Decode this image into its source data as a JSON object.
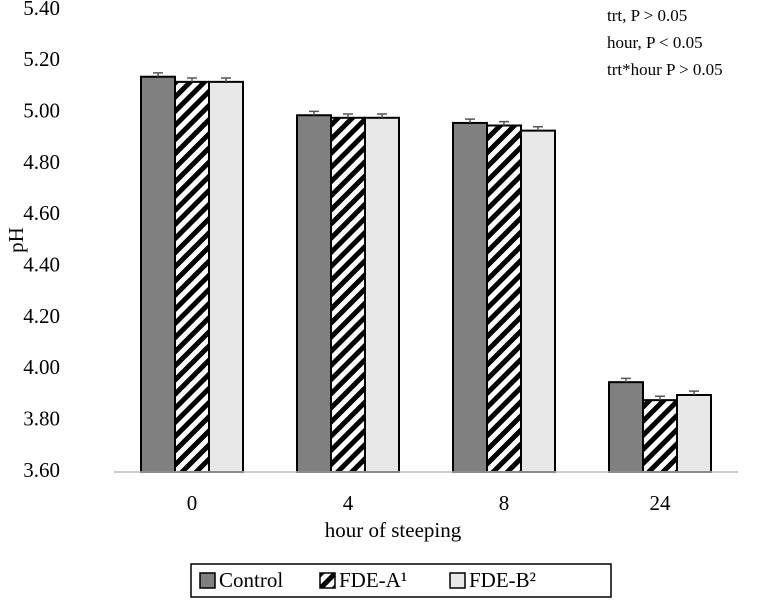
{
  "chart_data": {
    "type": "bar",
    "x_label": "hour of steeping",
    "y_label": "pH",
    "annotations": [
      "trt, P  >  0.05",
      "hour, P < 0.05",
      "trt*hour P > 0.05"
    ],
    "categories": [
      "0",
      "4",
      "8",
      "24"
    ],
    "series": [
      {
        "name": "Control",
        "color": "#808080",
        "values": [
          5.14,
          4.99,
          4.96,
          3.95
        ],
        "errors": [
          0.015,
          0.015,
          0.015,
          0.015
        ]
      },
      {
        "name": "FDE-A¹",
        "color": "#000000",
        "pattern": "diagonal",
        "values": [
          5.12,
          4.98,
          4.95,
          3.88
        ],
        "errors": [
          0.015,
          0.015,
          0.015,
          0.015
        ]
      },
      {
        "name": "FDE-B²",
        "color": "#e8e8e8",
        "values": [
          5.12,
          4.98,
          4.93,
          3.9
        ],
        "errors": [
          0.015,
          0.015,
          0.015,
          0.015
        ]
      }
    ],
    "ylim": [
      3.6,
      5.4
    ],
    "yticks": [
      {
        "value": 3.6,
        "label": "3.60"
      },
      {
        "value": 3.8,
        "label": "3.80"
      },
      {
        "value": 4.0,
        "label": "4.00"
      },
      {
        "value": 4.2,
        "label": "4.20"
      },
      {
        "value": 4.4,
        "label": "4.40"
      },
      {
        "value": 4.6,
        "label": "4.60"
      },
      {
        "value": 4.8,
        "label": "4.80"
      },
      {
        "value": 5.0,
        "label": "5.00"
      },
      {
        "value": 5.2,
        "label": "5.20"
      },
      {
        "value": 5.4,
        "label": "5.40"
      }
    ],
    "grid": false,
    "legend": "bottom"
  }
}
